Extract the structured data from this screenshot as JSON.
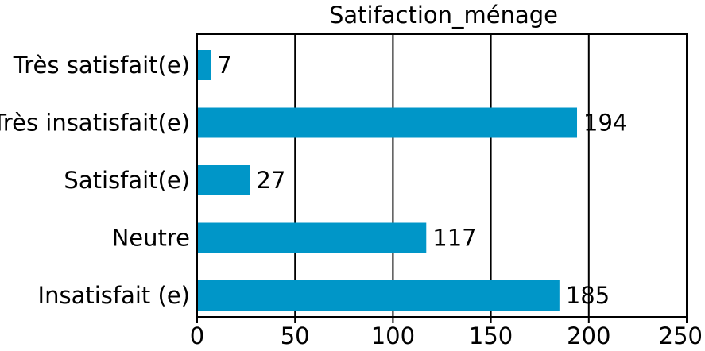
{
  "chart_data": {
    "type": "bar",
    "orientation": "horizontal",
    "title": "Satifaction_ménage",
    "xlabel": "",
    "ylabel": "",
    "categories": [
      "Très satisfait(e)",
      "Très insatisfait(e)",
      "Satisfait(e)",
      "Neutre",
      "Insatisfait (e)"
    ],
    "values": [
      7,
      194,
      27,
      117,
      185
    ],
    "xlim": [
      0,
      250
    ],
    "xticks": [
      0,
      50,
      100,
      150,
      200,
      250
    ],
    "xtick_labels": [
      "0",
      "50",
      "100",
      "150",
      "200",
      "250"
    ],
    "grid": "vertical",
    "legend": "none",
    "bar_color": "#0096c8",
    "axis_color": "#000000"
  }
}
